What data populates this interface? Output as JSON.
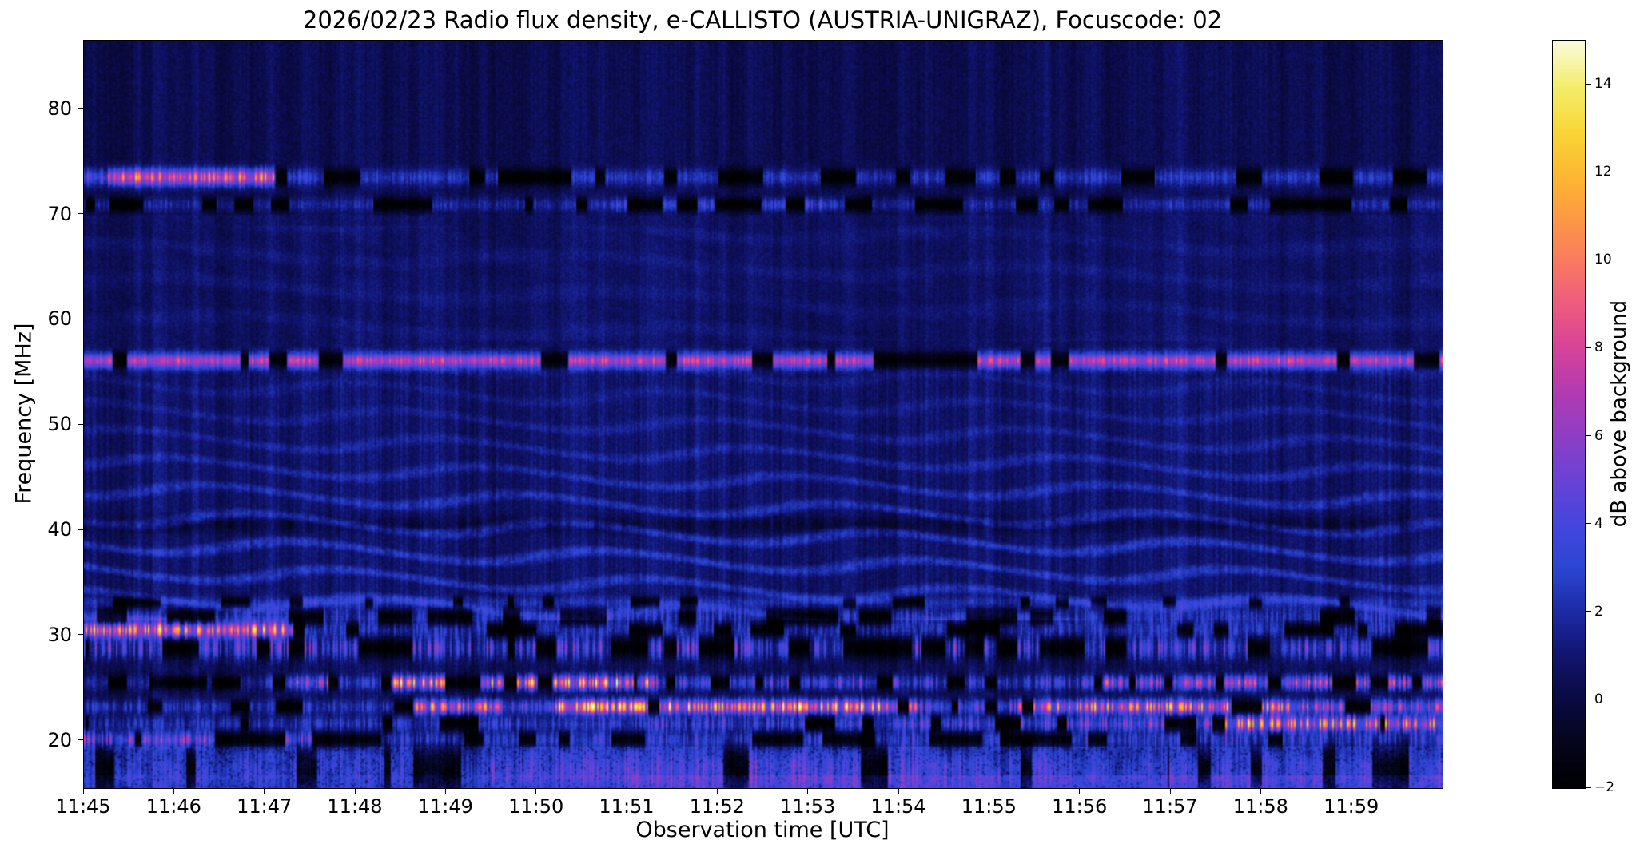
{
  "chart_data": {
    "type": "heatmap",
    "title": "2026/02/23  Radio flux density, e-CALLISTO (AUSTRIA-UNIGRAZ), Focuscode: 02",
    "xlabel": "Observation time [UTC]",
    "ylabel": "Frequency [MHz]",
    "x_ticks": [
      "11:45",
      "11:46",
      "11:47",
      "11:48",
      "11:49",
      "11:50",
      "11:51",
      "11:52",
      "11:53",
      "11:54",
      "11:55",
      "11:56",
      "11:57",
      "11:58",
      "11:59"
    ],
    "x_minutes": 15,
    "x_range": [
      "11:45:00",
      "12:00:00"
    ],
    "y_tick_values": [
      20,
      30,
      40,
      50,
      60,
      70,
      80
    ],
    "y_tick_labels": [
      "20",
      "30",
      "40",
      "50",
      "60",
      "70",
      "80"
    ],
    "y_range": [
      15.5,
      86.5
    ],
    "grid": false,
    "colorbar": {
      "label": "dB above background",
      "range": [
        -2,
        15
      ],
      "tick_values": [
        -2,
        0,
        2,
        4,
        6,
        8,
        10,
        12,
        14
      ],
      "tick_labels": [
        "−2",
        "0",
        "2",
        "4",
        "6",
        "8",
        "10",
        "12",
        "14"
      ]
    },
    "features": [
      "Bright narrowband emission at ~73.5 MHz, strongest 11:45-11:47, intermittent dark/blue patches afterwards",
      "Dark interference lane with blue segments at ~71 MHz, brighter 11:51-11:53",
      "Strong continuous bright magenta interference line at ~56 MHz with black dropout blobs",
      "Wavy blue ionospheric fringes between ~32-55 MHz, strongest around 35-42 MHz, with a dark lane near 40.5 MHz",
      "Bright orange band at ~30.5 MHz during 11:45-11:47, dark speckled lane afterwards",
      "Broadband RFI below 30 MHz: bright yellow burst trains near 25.5 MHz and 23.3 MHz, orange segment near 21.5 MHz after 11:57",
      "Noisy blue band below 20 MHz, brighter 11:49-11:55 and near the bottom edge late in the interval",
      "Faint vertical striations and a few brighter vertical columns across all frequencies"
    ],
    "render": {
      "colormap": [
        [
          -2,
          "#000003"
        ],
        [
          -1,
          "#05051c"
        ],
        [
          0,
          "#0a0a42"
        ],
        [
          1,
          "#111570"
        ],
        [
          2,
          "#1c2ba6"
        ],
        [
          3,
          "#2c46d3"
        ],
        [
          4,
          "#4546dd"
        ],
        [
          5,
          "#6a42d6"
        ],
        [
          6,
          "#8e3ec6"
        ],
        [
          7,
          "#b23bb2"
        ],
        [
          8,
          "#d74399"
        ],
        [
          9,
          "#ee5b7f"
        ],
        [
          10,
          "#f97a60"
        ],
        [
          11,
          "#fd9a43"
        ],
        [
          12,
          "#fdb931"
        ],
        [
          13,
          "#f9d737"
        ],
        [
          14,
          "#f3ee6d"
        ],
        [
          15,
          "#fbfbd9"
        ]
      ],
      "fringes": {
        "fmin": 31.5,
        "fmax": 55.5,
        "center": 38,
        "period": 2.55,
        "amp": 1.7
      },
      "dark_lane": {
        "f": 40.6,
        "depth": 1.3
      },
      "bands": [
        {
          "f": 73.6,
          "s": 0.55,
          "spk": 0.35,
          "gap": 0.38,
          "ga": 2.1,
          "seg": [
            [
              0,
              0.25,
              4
            ],
            [
              0.25,
              2.1,
              8.5
            ],
            [
              2.1,
              2.5,
              3
            ],
            [
              2.5,
              15,
              2.2
            ]
          ]
        },
        {
          "f": 71.0,
          "s": 0.45,
          "spk": 0.4,
          "gap": 0.45,
          "ga": 0,
          "seg": [
            [
              0,
              5.8,
              1.6
            ],
            [
              5.8,
              8.3,
              3.0
            ],
            [
              8.3,
              15,
              1.6
            ]
          ]
        },
        {
          "f": 56.2,
          "s": 0.5,
          "spk": 0.25,
          "gap": 0.3,
          "ga": 0,
          "seg": [
            [
              0,
              15,
              6.5
            ]
          ]
        },
        {
          "f": 33.2,
          "s": 0.4,
          "spk": 0.3,
          "gap": 0.25,
          "ga": 0,
          "seg": [
            [
              0,
              15,
              1.4
            ]
          ]
        },
        {
          "f": 31.8,
          "s": 0.6,
          "spk": 0.7,
          "gap": 0.45,
          "ga": 0,
          "seg": [
            [
              0,
              15,
              1.6
            ]
          ]
        },
        {
          "f": 30.6,
          "s": 0.5,
          "spk": 0.5,
          "gap": 0.35,
          "ga": 2.3,
          "seg": [
            [
              0,
              2.3,
              8.5
            ],
            [
              2.3,
              15,
              1.8
            ]
          ]
        },
        {
          "f": 28.9,
          "s": 0.7,
          "spk": 0.8,
          "gap": 0.5,
          "ga": 0,
          "seg": [
            [
              0,
              15,
              3.2
            ]
          ]
        },
        {
          "f": 25.6,
          "s": 0.45,
          "spk": 0.6,
          "gap": 0.3,
          "ga": 0,
          "seg": [
            [
              0,
              2,
              1.2
            ],
            [
              2,
              2.8,
              5
            ],
            [
              2.8,
              3.4,
              2
            ],
            [
              3.4,
              6.3,
              8.5
            ],
            [
              6.3,
              9,
              3.5
            ],
            [
              9,
              11,
              2.5
            ],
            [
              11,
              15,
              5.5
            ]
          ]
        },
        {
          "f": 23.3,
          "s": 0.45,
          "spk": 0.55,
          "gap": 0.25,
          "ga": 0,
          "seg": [
            [
              0,
              3.5,
              2
            ],
            [
              3.5,
              4.6,
              7.5
            ],
            [
              4.6,
              5.2,
              4
            ],
            [
              5.2,
              9.2,
              9.5
            ],
            [
              9.2,
              10.3,
              3.5
            ],
            [
              10.3,
              13.3,
              8
            ],
            [
              13.3,
              15,
              5.5
            ]
          ]
        },
        {
          "f": 21.7,
          "s": 0.5,
          "spk": 0.6,
          "gap": 0.3,
          "ga": 0,
          "seg": [
            [
              0,
              4,
              1.8
            ],
            [
              4,
              8,
              2.6
            ],
            [
              8,
              11,
              3.4
            ],
            [
              11,
              12.6,
              4.5
            ],
            [
              12.6,
              15,
              8
            ]
          ]
        },
        {
          "f": 20.2,
          "s": 0.5,
          "spk": 0.6,
          "gap": 0.35,
          "ga": 0,
          "seg": [
            [
              0,
              2.5,
              4.5
            ],
            [
              2.5,
              15,
              2.2
            ]
          ]
        },
        {
          "f": 17.3,
          "s": 1.6,
          "spk": 0.45,
          "gap": 0.3,
          "ga": 0,
          "seg": [
            [
              0,
              4.5,
              1.8
            ],
            [
              4.5,
              9.5,
              2.8
            ],
            [
              9.5,
              15,
              2.2
            ]
          ]
        }
      ],
      "columns": [
        [
          1.25,
          0.7
        ],
        [
          3.0,
          0.4
        ],
        [
          5.5,
          0.6
        ],
        [
          7.05,
          0.7
        ],
        [
          10.62,
          0.8
        ],
        [
          12.1,
          0.6
        ]
      ]
    }
  }
}
